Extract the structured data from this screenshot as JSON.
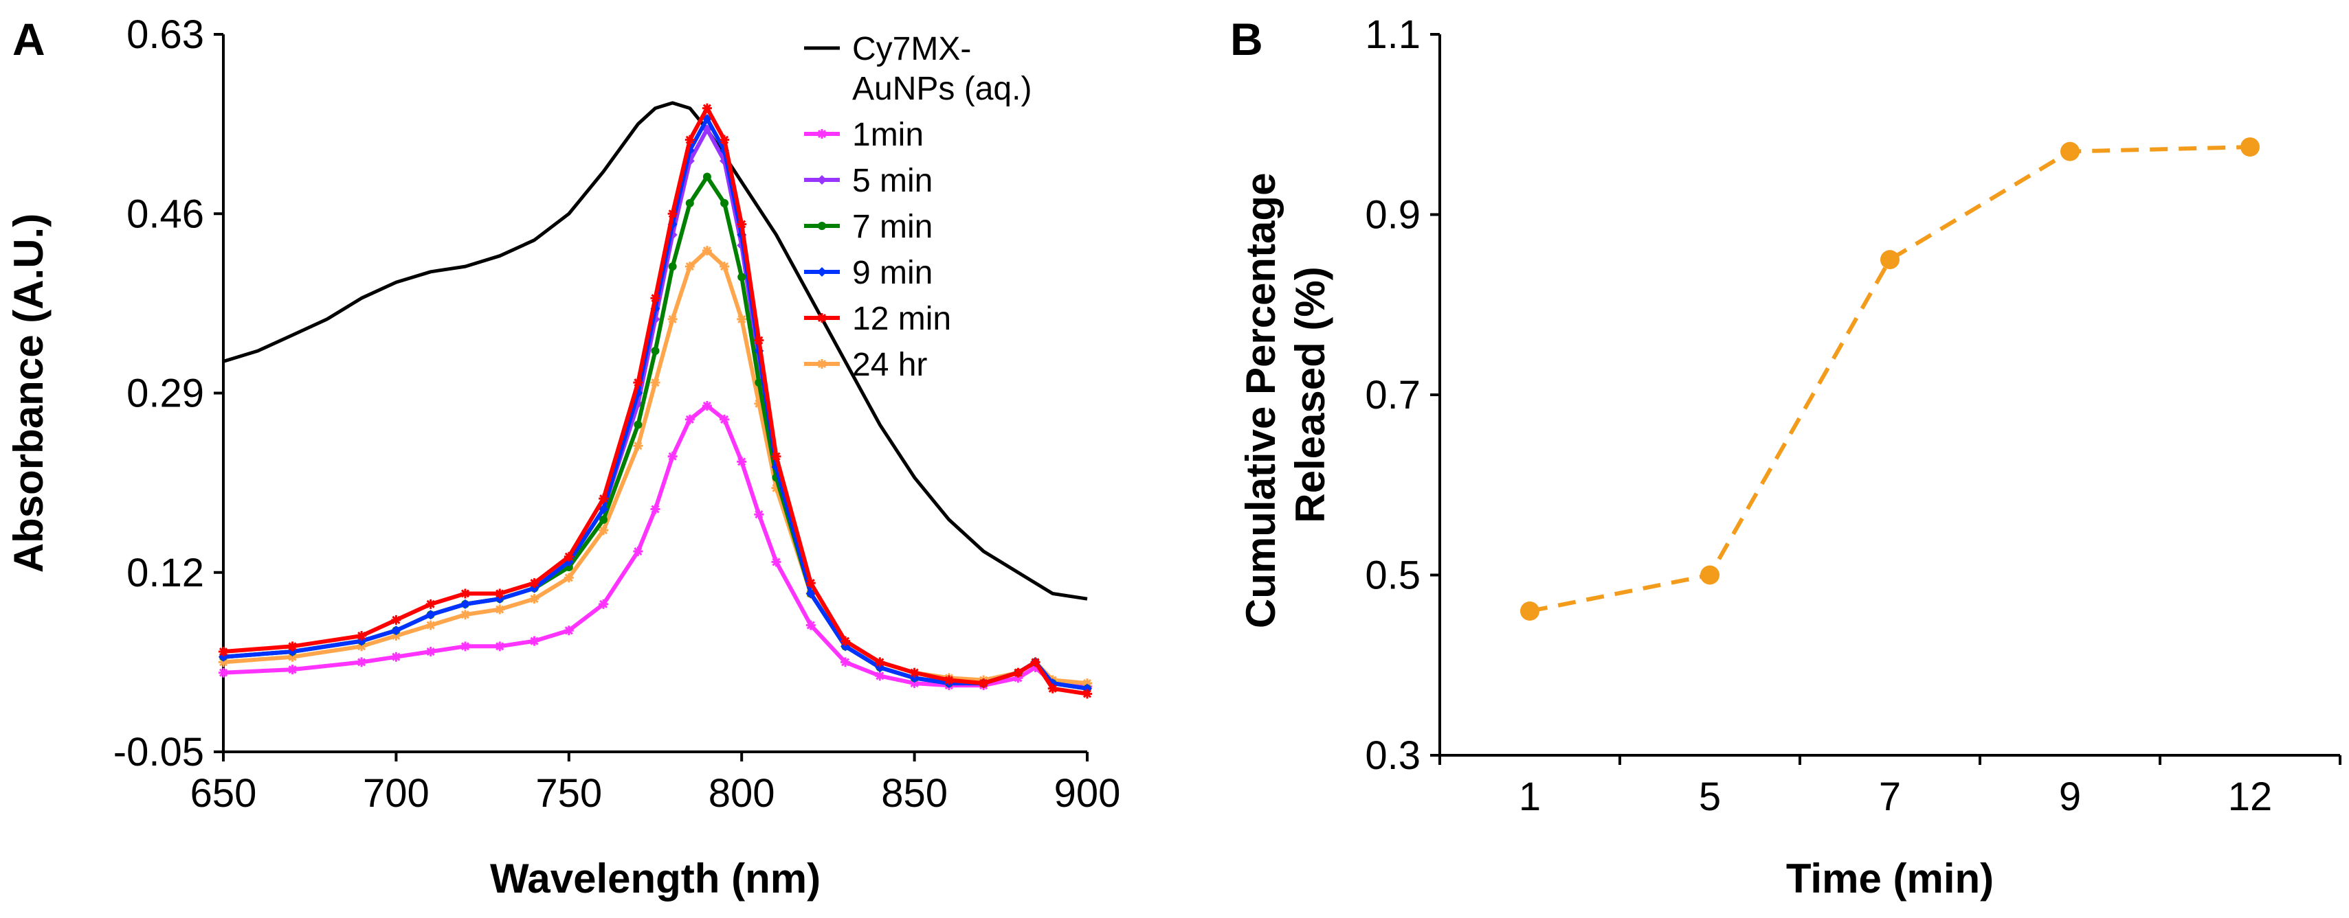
{
  "chart_data": [
    {
      "panel": "A",
      "type": "line",
      "xlabel": "Wavelength (nm)",
      "ylabel": "Absorbance (A.U.)",
      "xlim": [
        650,
        900
      ],
      "ylim": [
        -0.05,
        0.63
      ],
      "xticks": [
        650,
        700,
        750,
        800,
        850,
        900
      ],
      "yticks": [
        -0.05,
        0.12,
        0.29,
        0.46,
        0.63
      ],
      "xtick_labels": [
        "650",
        "700",
        "750",
        "800",
        "850",
        "900"
      ],
      "ytick_labels": [
        "-0.05",
        "0.12",
        "0.29",
        "0.46",
        "0.63"
      ],
      "legend_position": "top-right",
      "series": [
        {
          "name": "Cy7MX-AuNPs (aq.)",
          "legend_lines": [
            "Cy7MX-",
            "AuNPs (aq.)"
          ],
          "color": "#000000",
          "marker": "none",
          "x": [
            650,
            660,
            670,
            680,
            690,
            700,
            710,
            720,
            730,
            740,
            750,
            760,
            770,
            775,
            780,
            785,
            790,
            795,
            800,
            810,
            820,
            830,
            840,
            850,
            860,
            870,
            880,
            890,
            900
          ],
          "y": [
            0.32,
            0.33,
            0.345,
            0.36,
            0.38,
            0.395,
            0.405,
            0.41,
            0.42,
            0.435,
            0.46,
            0.5,
            0.545,
            0.56,
            0.565,
            0.56,
            0.54,
            0.515,
            0.49,
            0.44,
            0.38,
            0.32,
            0.26,
            0.21,
            0.17,
            0.14,
            0.12,
            0.1,
            0.095
          ]
        },
        {
          "name": "1min",
          "color": "#ff33ff",
          "marker": "star",
          "x": [
            650,
            670,
            690,
            700,
            710,
            720,
            730,
            740,
            750,
            760,
            770,
            775,
            780,
            785,
            790,
            795,
            800,
            805,
            810,
            820,
            830,
            840,
            850,
            860,
            870,
            880,
            885,
            890,
            900
          ],
          "y": [
            0.025,
            0.028,
            0.035,
            0.04,
            0.045,
            0.05,
            0.05,
            0.055,
            0.065,
            0.09,
            0.14,
            0.18,
            0.23,
            0.265,
            0.278,
            0.265,
            0.225,
            0.175,
            0.13,
            0.07,
            0.035,
            0.022,
            0.015,
            0.013,
            0.013,
            0.02,
            0.03,
            0.015,
            0.012
          ]
        },
        {
          "name": "5 min",
          "color": "#9933ff",
          "marker": "diamond",
          "x": [
            650,
            670,
            690,
            700,
            710,
            720,
            730,
            740,
            750,
            760,
            770,
            775,
            780,
            785,
            790,
            795,
            800,
            805,
            810,
            820,
            830,
            840,
            850,
            860,
            870,
            880,
            885,
            890,
            900
          ],
          "y": [
            0.04,
            0.045,
            0.055,
            0.065,
            0.08,
            0.09,
            0.095,
            0.105,
            0.13,
            0.18,
            0.28,
            0.36,
            0.44,
            0.51,
            0.54,
            0.51,
            0.43,
            0.32,
            0.22,
            0.1,
            0.05,
            0.03,
            0.02,
            0.015,
            0.015,
            0.025,
            0.035,
            0.015,
            0.01
          ]
        },
        {
          "name": "7 min",
          "color": "#008000",
          "marker": "circle",
          "x": [
            650,
            670,
            690,
            700,
            710,
            720,
            730,
            740,
            750,
            760,
            770,
            775,
            780,
            785,
            790,
            795,
            800,
            805,
            810,
            820,
            830,
            840,
            850,
            860,
            870,
            880,
            885,
            890,
            900
          ],
          "y": [
            0.04,
            0.045,
            0.055,
            0.065,
            0.08,
            0.09,
            0.095,
            0.105,
            0.125,
            0.17,
            0.26,
            0.33,
            0.41,
            0.47,
            0.495,
            0.47,
            0.4,
            0.3,
            0.21,
            0.1,
            0.05,
            0.03,
            0.02,
            0.015,
            0.015,
            0.025,
            0.035,
            0.015,
            0.01
          ]
        },
        {
          "name": "9 min",
          "color": "#0033ff",
          "marker": "diamond",
          "x": [
            650,
            670,
            690,
            700,
            710,
            720,
            730,
            740,
            750,
            760,
            770,
            775,
            780,
            785,
            790,
            795,
            800,
            805,
            810,
            820,
            830,
            840,
            850,
            860,
            870,
            880,
            885,
            890,
            900
          ],
          "y": [
            0.04,
            0.045,
            0.055,
            0.065,
            0.08,
            0.09,
            0.095,
            0.105,
            0.13,
            0.18,
            0.29,
            0.37,
            0.45,
            0.52,
            0.55,
            0.52,
            0.44,
            0.33,
            0.22,
            0.1,
            0.05,
            0.03,
            0.02,
            0.015,
            0.015,
            0.025,
            0.035,
            0.015,
            0.01
          ]
        },
        {
          "name": "12 min",
          "color": "#ff0000",
          "marker": "star",
          "x": [
            650,
            670,
            690,
            700,
            710,
            720,
            730,
            740,
            750,
            760,
            770,
            775,
            780,
            785,
            790,
            795,
            800,
            805,
            810,
            820,
            830,
            840,
            850,
            860,
            870,
            880,
            885,
            890,
            900
          ],
          "y": [
            0.045,
            0.05,
            0.06,
            0.075,
            0.09,
            0.1,
            0.1,
            0.11,
            0.135,
            0.19,
            0.3,
            0.38,
            0.46,
            0.53,
            0.56,
            0.53,
            0.45,
            0.34,
            0.23,
            0.11,
            0.055,
            0.035,
            0.025,
            0.018,
            0.015,
            0.025,
            0.035,
            0.01,
            0.005
          ]
        },
        {
          "name": "24 hr",
          "color": "#ffa64d",
          "marker": "star",
          "x": [
            650,
            670,
            690,
            700,
            710,
            720,
            730,
            740,
            750,
            760,
            770,
            775,
            780,
            785,
            790,
            795,
            800,
            805,
            810,
            820,
            830,
            840,
            850,
            860,
            870,
            880,
            885,
            890,
            900
          ],
          "y": [
            0.035,
            0.04,
            0.05,
            0.06,
            0.07,
            0.08,
            0.085,
            0.095,
            0.115,
            0.16,
            0.24,
            0.3,
            0.36,
            0.41,
            0.425,
            0.41,
            0.36,
            0.28,
            0.2,
            0.1,
            0.055,
            0.035,
            0.025,
            0.02,
            0.018,
            0.025,
            0.035,
            0.018,
            0.015
          ]
        }
      ]
    },
    {
      "panel": "B",
      "type": "line",
      "xlabel": "Time (min)",
      "ylabel_lines": [
        "Cumulative Percentage",
        "Released (%)"
      ],
      "categories": [
        "1",
        "5",
        "7",
        "9",
        "12"
      ],
      "ylim": [
        0.3,
        1.1
      ],
      "yticks": [
        0.3,
        0.5,
        0.7,
        0.9,
        1.1
      ],
      "ytick_labels": [
        "0.3",
        "0.5",
        "0.7",
        "0.9",
        "1.1"
      ],
      "series": [
        {
          "name": "Cumulative Percentage Released",
          "color": "#f39c1b",
          "line_style": "dashed",
          "marker": "circle",
          "values": [
            0.46,
            0.5,
            0.85,
            0.97,
            0.975
          ]
        }
      ]
    }
  ]
}
